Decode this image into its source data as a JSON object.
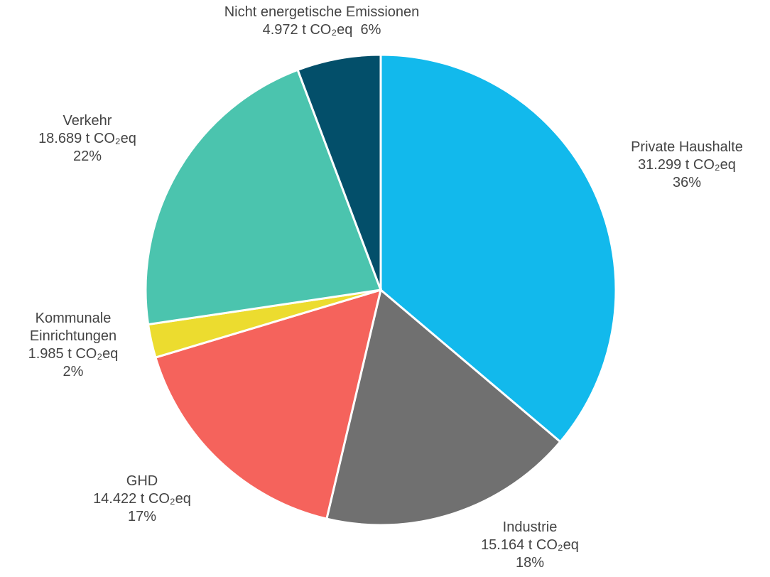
{
  "chart_data": {
    "type": "pie",
    "categories": [
      "Private Haushalte",
      "Industrie",
      "GHD",
      "Kommunale Einrichtungen",
      "Verkehr",
      "Nicht energetische Emissionen"
    ],
    "values": [
      31299,
      15164,
      14422,
      1985,
      18689,
      4972
    ],
    "value_labels": [
      "31.299 t CO₂eq",
      "15.164 t CO₂eq",
      "14.422 t CO₂eq",
      "1.985 t CO₂eq",
      "18.689 t CO₂eq",
      "4.972 t CO₂eq"
    ],
    "shares": [
      36,
      18,
      17,
      2,
      22,
      6
    ],
    "share_labels": [
      "36%",
      "18%",
      "17%",
      "2%",
      "22%",
      "6%"
    ],
    "colors": [
      "#12b9ec",
      "#707070",
      "#f5635c",
      "#ecdc2f",
      "#4bc4ae",
      "#034f6a"
    ]
  }
}
